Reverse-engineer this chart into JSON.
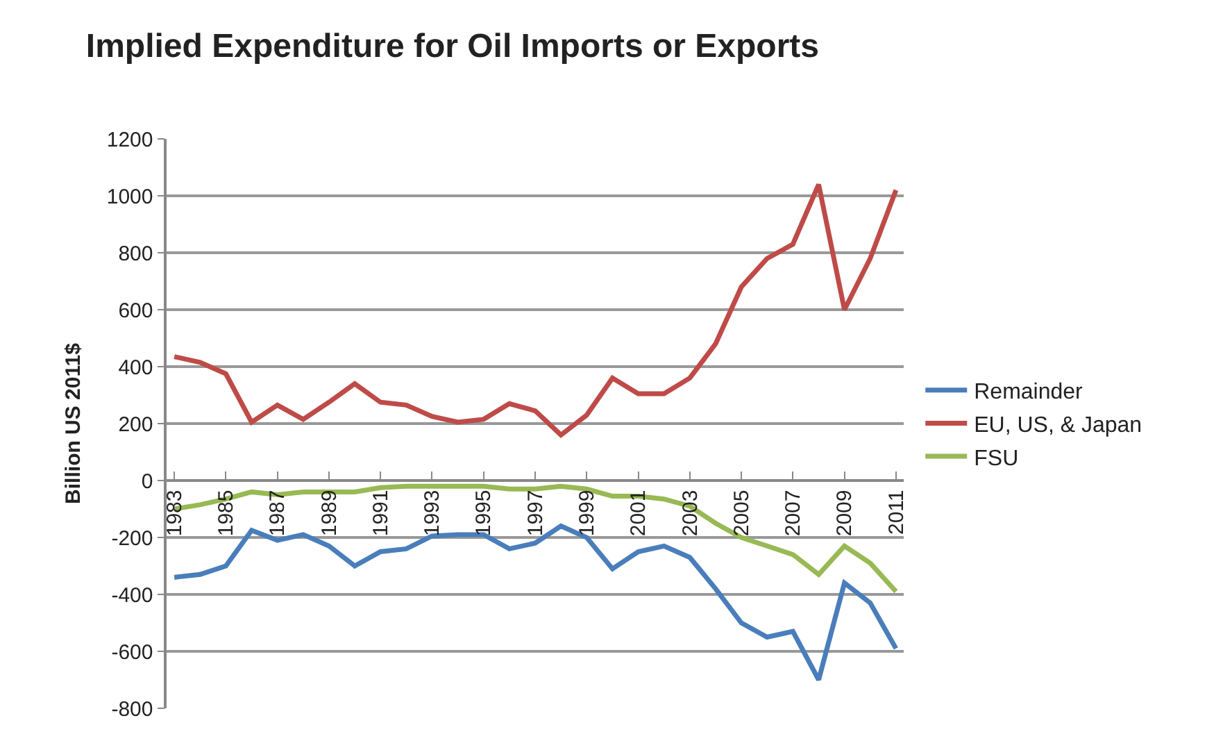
{
  "chart_data": {
    "type": "line",
    "title": "Implied Expenditure for Oil Imports or Exports",
    "ylabel": "Billion US 2011$",
    "categories": [
      "1983",
      null,
      "1985",
      null,
      "1987",
      null,
      "1989",
      null,
      "1991",
      null,
      "1993",
      null,
      "1995",
      null,
      "1997",
      null,
      "1999",
      null,
      "2001",
      null,
      "2003",
      null,
      "2005",
      null,
      "2007",
      null,
      "2009",
      null,
      "2011"
    ],
    "series": [
      {
        "name": "Remainder",
        "color": "#4a7ebb",
        "values": [
          -340,
          -330,
          -300,
          -175,
          -210,
          -190,
          -230,
          -300,
          -250,
          -240,
          -195,
          -190,
          -190,
          -240,
          -220,
          -160,
          -200,
          -310,
          -250,
          -230,
          -270,
          -380,
          -500,
          -550,
          -530,
          -700,
          -360,
          -430,
          -590
        ]
      },
      {
        "name": "EU, US, & Japan",
        "color": "#be4b48",
        "values": [
          435,
          415,
          375,
          205,
          265,
          215,
          275,
          340,
          275,
          265,
          225,
          205,
          215,
          270,
          245,
          160,
          230,
          360,
          305,
          305,
          360,
          480,
          680,
          780,
          830,
          1040,
          600,
          780,
          1020
        ]
      },
      {
        "name": "FSU",
        "color": "#98b954",
        "values": [
          -100,
          -85,
          -65,
          -40,
          -50,
          -40,
          -40,
          -40,
          -25,
          -20,
          -20,
          -20,
          -20,
          -30,
          -30,
          -20,
          -30,
          -55,
          -55,
          -65,
          -90,
          -150,
          -200,
          -230,
          -260,
          -330,
          -230,
          -290,
          -390
        ]
      }
    ],
    "ylim": [
      -800,
      1200
    ],
    "yticks": [
      -800,
      -600,
      -400,
      -200,
      0,
      200,
      400,
      600,
      800,
      1000,
      1200
    ],
    "grid": "y",
    "legend": "right",
    "marker": "none",
    "line_style": "solid"
  }
}
